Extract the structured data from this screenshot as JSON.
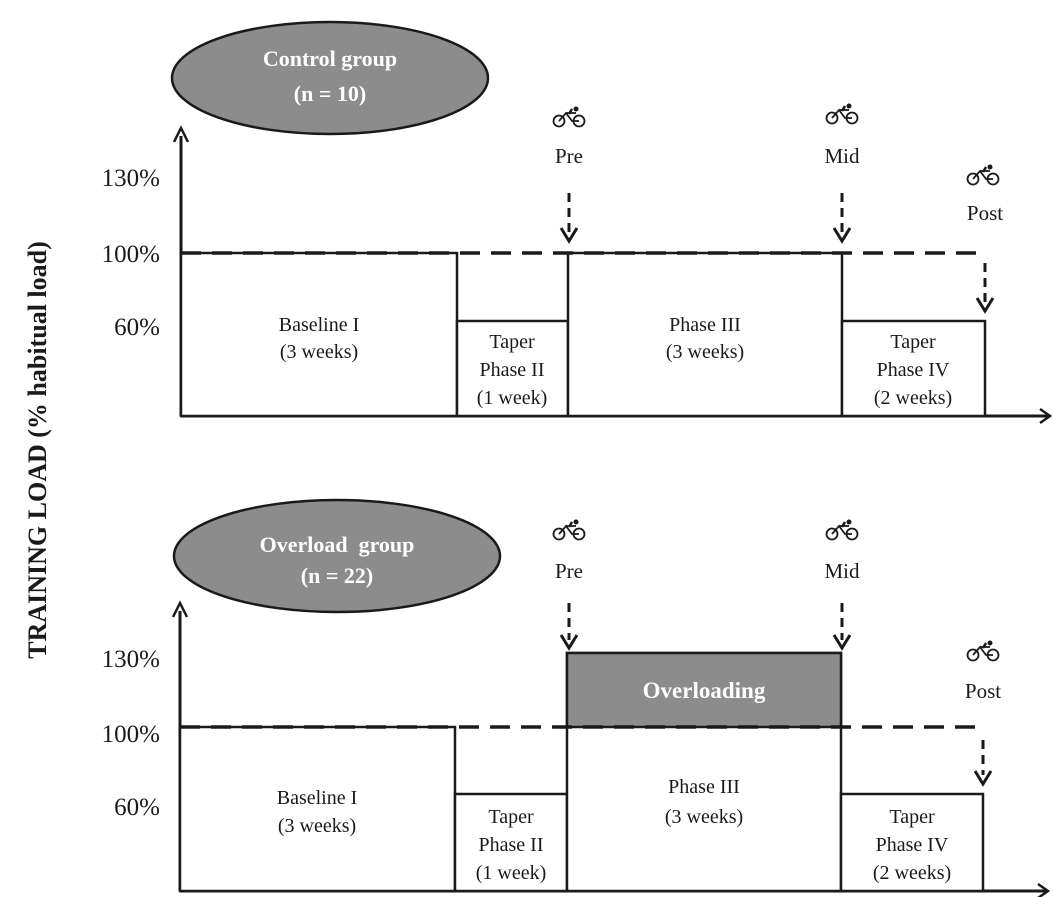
{
  "y_axis_title": "TRAINING LOAD (% habitual load)",
  "colors": {
    "ellipse_fill": "#8c8c8c",
    "overload_fill": "#8c8c8c",
    "line": "#1a1a1a"
  },
  "panels": [
    {
      "id": "control",
      "group_name": "Control group",
      "group_size": "(n = 10)",
      "ticks": [
        "130%",
        "100%",
        "60%"
      ],
      "phases": [
        {
          "lines": [
            "Baseline I",
            "(3 weeks)"
          ],
          "level_percent": 100
        },
        {
          "lines": [
            "Taper",
            "Phase II",
            "(1 week)"
          ],
          "level_percent": 60
        },
        {
          "lines": [
            "Phase III",
            "(3 weeks)"
          ],
          "level_percent": 100
        },
        {
          "lines": [
            "Taper",
            "Phase IV",
            "(2 weeks)"
          ],
          "level_percent": 60
        }
      ],
      "overload": null,
      "markers": [
        "Pre",
        "Mid",
        "Post"
      ]
    },
    {
      "id": "overload",
      "group_name": "Overload  group",
      "group_size": "(n = 22)",
      "ticks": [
        "130%",
        "100%",
        "60%"
      ],
      "phases": [
        {
          "lines": [
            "Baseline I",
            "(3 weeks)"
          ],
          "level_percent": 100
        },
        {
          "lines": [
            "Taper",
            "Phase II",
            "(1 week)"
          ],
          "level_percent": 60
        },
        {
          "lines": [
            "Phase III",
            "(3 weeks)"
          ],
          "level_percent": 100
        },
        {
          "lines": [
            "Taper",
            "Phase IV",
            "(2 weeks)"
          ],
          "level_percent": 60
        }
      ],
      "overload": {
        "label": "Overloading",
        "level_percent": 130
      },
      "markers": [
        "Pre",
        "Mid",
        "Post"
      ]
    }
  ]
}
